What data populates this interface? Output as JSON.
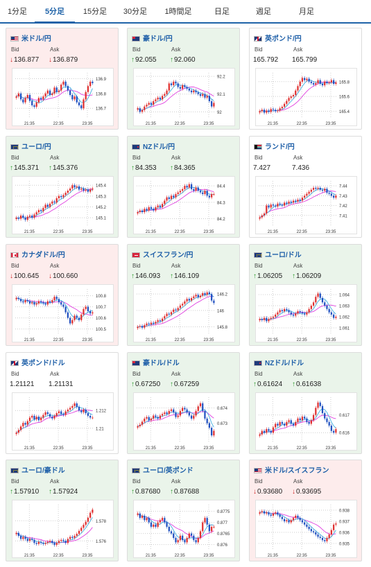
{
  "tabs": [
    "1分足",
    "5分足",
    "15分足",
    "30分足",
    "1時間足",
    "日足",
    "週足",
    "月足"
  ],
  "active_tab": 1,
  "labels": {
    "bid": "Bid",
    "ask": "Ask"
  },
  "colors": {
    "up_bg": "#eaf4ea",
    "down_bg": "#fdecec",
    "accent": "#1f63a8",
    "candle_up": "#e03030",
    "candle_down": "#2050c0",
    "ma1": "#e040e0",
    "ma2": "#40b0e0"
  },
  "cards": [
    {
      "title": "米ドル/円",
      "flag": "us",
      "state": "down",
      "bid": "136.877",
      "ask": "136.879",
      "bid_dir": "down",
      "ask_dir": "down",
      "chart_data": {
        "type": "candlestick",
        "x_ticks": [
          "21:35",
          "22:35",
          "23:35"
        ],
        "y_ticks": [
          "136.9",
          "136.8",
          "136.7"
        ],
        "ylim": [
          136.64,
          136.94
        ],
        "close": [
          136.78,
          136.8,
          136.76,
          136.74,
          136.77,
          136.79,
          136.75,
          136.72,
          136.71,
          136.74,
          136.77,
          136.76,
          136.78,
          136.8,
          136.82,
          136.79,
          136.8,
          136.84,
          136.81,
          136.82,
          136.86,
          136.88,
          136.85,
          136.82,
          136.79,
          136.76,
          136.78,
          136.74,
          136.72,
          136.7,
          136.76,
          136.81,
          136.85,
          136.88,
          136.87
        ]
      }
    },
    {
      "title": "豪ドル/円",
      "flag": "au",
      "state": "up",
      "bid": "92.055",
      "ask": "92.060",
      "bid_dir": "up",
      "ask_dir": "up",
      "chart_data": {
        "type": "candlestick",
        "x_ticks": [
          "21:35",
          "22:35",
          "23:35"
        ],
        "y_ticks": [
          "92.2",
          "92.1",
          "92"
        ],
        "ylim": [
          91.97,
          92.22
        ],
        "close": [
          92.02,
          92.0,
          92.01,
          92.03,
          92.04,
          92.05,
          92.04,
          92.06,
          92.07,
          92.08,
          92.07,
          92.09,
          92.1,
          92.12,
          92.16,
          92.15,
          92.17,
          92.16,
          92.14,
          92.13,
          92.15,
          92.14,
          92.13,
          92.12,
          92.11,
          92.12,
          92.11,
          92.1,
          92.09,
          92.1,
          92.08,
          92.09,
          92.06,
          92.03,
          92.05
        ]
      }
    },
    {
      "title": "英ポンド/円",
      "flag": "gb",
      "state": "flat",
      "bid": "165.792",
      "ask": "165.799",
      "bid_dir": "",
      "ask_dir": "",
      "chart_data": {
        "type": "candlestick",
        "x_ticks": [
          "21:35",
          "22:35",
          "23:35"
        ],
        "y_ticks": [
          "165.8",
          "165.6",
          "165.4"
        ],
        "ylim": [
          165.32,
          165.92
        ],
        "close": [
          165.4,
          165.42,
          165.38,
          165.41,
          165.39,
          165.43,
          165.42,
          165.4,
          165.41,
          165.44,
          165.46,
          165.5,
          165.54,
          165.58,
          165.6,
          165.62,
          165.68,
          165.74,
          165.8,
          165.85,
          165.82,
          165.84,
          165.8,
          165.78,
          165.76,
          165.78,
          165.82,
          165.77,
          165.75,
          165.8,
          165.78,
          165.79,
          165.82,
          165.77,
          165.79
        ]
      }
    },
    {
      "title": "ユーロ/円",
      "flag": "eu",
      "state": "up",
      "bid": "145.371",
      "ask": "145.376",
      "bid_dir": "up",
      "ask_dir": "up",
      "chart_data": {
        "type": "candlestick",
        "x_ticks": [
          "21:35",
          "22:35",
          "23:35"
        ],
        "y_ticks": [
          "145.4",
          "145.3",
          "145.2",
          "145.1"
        ],
        "ylim": [
          145.03,
          145.44
        ],
        "close": [
          145.1,
          145.09,
          145.12,
          145.1,
          145.08,
          145.11,
          145.12,
          145.1,
          145.13,
          145.15,
          145.17,
          145.16,
          145.19,
          145.22,
          145.2,
          145.23,
          145.25,
          145.24,
          145.28,
          145.3,
          145.29,
          145.31,
          145.33,
          145.35,
          145.37,
          145.4,
          145.38,
          145.39,
          145.36,
          145.37,
          145.35,
          145.36,
          145.34,
          145.36,
          145.37
        ]
      }
    },
    {
      "title": "NZドル/円",
      "flag": "nz",
      "state": "up",
      "bid": "84.353",
      "ask": "84.365",
      "bid_dir": "up",
      "ask_dir": "up",
      "chart_data": {
        "type": "candlestick",
        "x_ticks": [
          "21:35",
          "22:35",
          "23:35"
        ],
        "y_ticks": [
          "84.4",
          "84.3",
          "84.2"
        ],
        "ylim": [
          84.16,
          84.43
        ],
        "close": [
          84.24,
          84.25,
          84.24,
          84.26,
          84.25,
          84.27,
          84.26,
          84.25,
          84.27,
          84.28,
          84.27,
          84.29,
          84.31,
          84.33,
          84.32,
          84.34,
          84.33,
          84.35,
          84.36,
          84.37,
          84.38,
          84.4,
          84.39,
          84.41,
          84.38,
          84.37,
          84.39,
          84.37,
          84.36,
          84.35,
          84.37,
          84.34,
          84.33,
          84.35,
          84.35
        ]
      }
    },
    {
      "title": "ランド/円",
      "flag": "za",
      "state": "flat",
      "bid": "7.427",
      "ask": "7.436",
      "bid_dir": "",
      "ask_dir": "",
      "chart_data": {
        "type": "candlestick",
        "x_ticks": [
          "21:35",
          "22:35",
          "23:35"
        ],
        "y_ticks": [
          "7.44",
          "7.43",
          "7.42",
          "7.41"
        ],
        "ylim": [
          7.4,
          7.445
        ],
        "close": [
          7.408,
          7.41,
          7.412,
          7.42,
          7.418,
          7.421,
          7.42,
          7.419,
          7.422,
          7.421,
          7.42,
          7.423,
          7.422,
          7.424,
          7.423,
          7.425,
          7.424,
          7.426,
          7.425,
          7.428,
          7.43,
          7.432,
          7.434,
          7.436,
          7.438,
          7.437,
          7.438,
          7.436,
          7.435,
          7.437,
          7.433,
          7.432,
          7.43,
          7.428,
          7.43
        ]
      }
    },
    {
      "title": "カナダドル/円",
      "flag": "ca",
      "state": "down",
      "bid": "100.645",
      "ask": "100.660",
      "bid_dir": "down",
      "ask_dir": "down",
      "chart_data": {
        "type": "candlestick",
        "x_ticks": [
          "21:35",
          "22:35",
          "23:35"
        ],
        "y_ticks": [
          "100.8",
          "100.7",
          "100.6",
          "100.5"
        ],
        "ylim": [
          100.46,
          100.86
        ],
        "close": [
          100.78,
          100.77,
          100.75,
          100.74,
          100.76,
          100.75,
          100.73,
          100.74,
          100.72,
          100.73,
          100.75,
          100.74,
          100.73,
          100.72,
          100.75,
          100.74,
          100.76,
          100.79,
          100.77,
          100.74,
          100.72,
          100.7,
          100.65,
          100.6,
          100.55,
          100.58,
          100.62,
          100.6,
          100.58,
          100.63,
          100.68,
          100.7,
          100.66,
          100.64,
          100.65
        ]
      }
    },
    {
      "title": "スイスフラン/円",
      "flag": "ch",
      "state": "up",
      "bid": "146.093",
      "ask": "146.109",
      "bid_dir": "up",
      "ask_dir": "up",
      "chart_data": {
        "type": "candlestick",
        "x_ticks": [
          "21:35",
          "22:35",
          "23:35"
        ],
        "y_ticks": [
          "146.2",
          "146",
          "145.8"
        ],
        "ylim": [
          145.72,
          146.26
        ],
        "close": [
          145.8,
          145.81,
          145.79,
          145.82,
          145.84,
          145.83,
          145.85,
          145.84,
          145.86,
          145.88,
          145.87,
          145.9,
          145.93,
          145.96,
          145.95,
          145.98,
          146.01,
          146.0,
          146.03,
          146.06,
          146.08,
          146.11,
          146.14,
          146.12,
          146.15,
          146.17,
          146.19,
          146.16,
          146.18,
          146.21,
          146.19,
          146.22,
          146.2,
          146.12,
          146.09
        ]
      }
    },
    {
      "title": "ユーロ/ドル",
      "flag": "eu",
      "state": "up",
      "bid": "1.06205",
      "ask": "1.06209",
      "bid_dir": "up",
      "ask_dir": "up",
      "chart_data": {
        "type": "candlestick",
        "x_ticks": [
          "21:35",
          "22:35",
          "23:35"
        ],
        "y_ticks": [
          "1.064",
          "1.063",
          "1.062",
          "1.061"
        ],
        "ylim": [
          1.0605,
          1.0645
        ],
        "close": [
          1.0618,
          1.0617,
          1.0619,
          1.0616,
          1.0618,
          1.0619,
          1.062,
          1.0622,
          1.0624,
          1.0626,
          1.0625,
          1.0627,
          1.0626,
          1.0624,
          1.0622,
          1.0621,
          1.0623,
          1.0625,
          1.0624,
          1.0623,
          1.0622,
          1.0624,
          1.0627,
          1.063,
          1.0633,
          1.0638,
          1.0641,
          1.0637,
          1.0633,
          1.063,
          1.0627,
          1.0624,
          1.0622,
          1.0619,
          1.062
        ]
      }
    },
    {
      "title": "英ポンド/ドル",
      "flag": "gb",
      "state": "flat",
      "bid": "1.21121",
      "ask": "1.21131",
      "bid_dir": "",
      "ask_dir": "",
      "chart_data": {
        "type": "candlestick",
        "x_ticks": [
          "21:35",
          "22:35",
          "23:35"
        ],
        "y_ticks": [
          "1.212",
          "1.21"
        ],
        "ylim": [
          1.2085,
          1.2135
        ],
        "close": [
          1.2095,
          1.2098,
          1.2102,
          1.2106,
          1.2104,
          1.2108,
          1.2112,
          1.2114,
          1.211,
          1.2113,
          1.2109,
          1.2112,
          1.2115,
          1.2118,
          1.2116,
          1.2113,
          1.2111,
          1.2114,
          1.2117,
          1.2119,
          1.2116,
          1.2115,
          1.2119,
          1.2121,
          1.2123,
          1.2125,
          1.2128,
          1.2124,
          1.212,
          1.2118,
          1.2121,
          1.2117,
          1.2114,
          1.2112,
          1.2112
        ]
      }
    },
    {
      "title": "豪ドル/ドル",
      "flag": "au",
      "state": "up",
      "bid": "0.67250",
      "ask": "0.67259",
      "bid_dir": "up",
      "ask_dir": "up",
      "chart_data": {
        "type": "candlestick",
        "x_ticks": [
          "21:35",
          "22:35",
          "23:35"
        ],
        "y_ticks": [
          "0.674",
          "0.673"
        ],
        "ylim": [
          0.6718,
          0.6747
        ],
        "close": [
          0.6728,
          0.6729,
          0.6731,
          0.6733,
          0.6734,
          0.6732,
          0.6733,
          0.6735,
          0.6734,
          0.6733,
          0.6735,
          0.6736,
          0.6737,
          0.6736,
          0.6738,
          0.6739,
          0.6737,
          0.6734,
          0.6735,
          0.6738,
          0.674,
          0.6739,
          0.6737,
          0.6735,
          0.6733,
          0.6735,
          0.6738,
          0.6741,
          0.6743,
          0.6738,
          0.6733,
          0.673,
          0.6727,
          0.6722,
          0.6725
        ]
      }
    },
    {
      "title": "NZドル/ドル",
      "flag": "nz",
      "state": "up",
      "bid": "0.61624",
      "ask": "0.61638",
      "bid_dir": "up",
      "ask_dir": "up",
      "chart_data": {
        "type": "candlestick",
        "x_ticks": [
          "21:35",
          "22:35",
          "23:35"
        ],
        "y_ticks": [
          "0.617",
          "0.616"
        ],
        "ylim": [
          0.6155,
          0.618
        ],
        "close": [
          0.6159,
          0.6161,
          0.616,
          0.6162,
          0.6161,
          0.616,
          0.6163,
          0.6165,
          0.6164,
          0.6166,
          0.6165,
          0.6164,
          0.6166,
          0.6167,
          0.6165,
          0.6164,
          0.6166,
          0.6168,
          0.6167,
          0.6169,
          0.6168,
          0.6166,
          0.6165,
          0.6167,
          0.617,
          0.6174,
          0.6177,
          0.6175,
          0.6171,
          0.6168,
          0.6166,
          0.6164,
          0.6161,
          0.616,
          0.6162
        ]
      }
    },
    {
      "title": "ユーロ/豪ドル",
      "flag": "eu",
      "state": "up",
      "bid": "1.57910",
      "ask": "1.57924",
      "bid_dir": "up",
      "ask_dir": "up",
      "chart_data": {
        "type": "candlestick",
        "x_ticks": [
          "21:35",
          "22:35",
          "23:35"
        ],
        "y_ticks": [
          "1.578",
          "1.576"
        ],
        "ylim": [
          1.5752,
          1.5796
        ],
        "close": [
          1.5768,
          1.5765,
          1.5762,
          1.5764,
          1.5762,
          1.576,
          1.5762,
          1.5761,
          1.5758,
          1.5757,
          1.5759,
          1.5758,
          1.5757,
          1.5758,
          1.5759,
          1.576,
          1.5758,
          1.5756,
          1.5758,
          1.576,
          1.5761,
          1.576,
          1.5758,
          1.5762,
          1.5764,
          1.5763,
          1.5765,
          1.5767,
          1.577,
          1.5773,
          1.5776,
          1.5779,
          1.5783,
          1.5788,
          1.5791
        ]
      }
    },
    {
      "title": "ユーロ/英ポンド",
      "flag": "eu",
      "state": "up",
      "bid": "0.87680",
      "ask": "0.87688",
      "bid_dir": "up",
      "ask_dir": "up",
      "chart_data": {
        "type": "candlestick",
        "x_ticks": [
          "21:35",
          "22:35",
          "23:35"
        ],
        "y_ticks": [
          "0.8775",
          "0.877",
          "0.8765",
          "0.876"
        ],
        "ylim": [
          0.8758,
          0.8778
        ],
        "close": [
          0.8774,
          0.8772,
          0.8773,
          0.8771,
          0.8772,
          0.877,
          0.8768,
          0.8769,
          0.8768,
          0.877,
          0.8771,
          0.8772,
          0.877,
          0.8768,
          0.8766,
          0.8765,
          0.8763,
          0.8761,
          0.8762,
          0.8764,
          0.8762,
          0.8761,
          0.8763,
          0.8765,
          0.8764,
          0.8762,
          0.8761,
          0.8763,
          0.8766,
          0.877,
          0.8772,
          0.8769,
          0.8766,
          0.8768,
          0.8768
        ]
      }
    },
    {
      "title": "米ドル/スイスフラン",
      "flag": "us",
      "state": "down",
      "bid": "0.93680",
      "ask": "0.93695",
      "bid_dir": "down",
      "ask_dir": "down",
      "chart_data": {
        "type": "candlestick",
        "x_ticks": [
          "21:35",
          "22:35",
          "23:35"
        ],
        "y_ticks": [
          "0.938",
          "0.937",
          "0.936",
          "0.935"
        ],
        "ylim": [
          0.9345,
          0.9385
        ],
        "close": [
          0.9378,
          0.9379,
          0.9377,
          0.9378,
          0.9376,
          0.9375,
          0.9377,
          0.9378,
          0.9376,
          0.9374,
          0.9372,
          0.937,
          0.9371,
          0.9369,
          0.9371,
          0.9373,
          0.9375,
          0.9373,
          0.9371,
          0.9369,
          0.9367,
          0.9365,
          0.9363,
          0.9361,
          0.936,
          0.9358,
          0.9356,
          0.9355,
          0.9353,
          0.9352,
          0.9355,
          0.9358,
          0.9362,
          0.9367,
          0.9368
        ]
      }
    }
  ]
}
